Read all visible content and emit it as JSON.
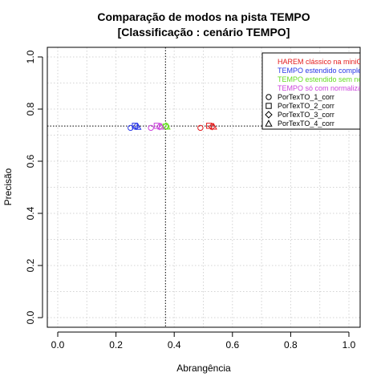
{
  "chart_data": {
    "type": "scatter",
    "title_line1": "Comparação de modos na pista TEMPO",
    "title_line2": "[Classificação : cenário TEMPO]",
    "xlabel": "Abrangência",
    "ylabel": "Precisão",
    "xlim": [
      0,
      1
    ],
    "ylim": [
      0,
      1
    ],
    "x_ticks": [
      "0.0",
      "0.2",
      "0.4",
      "0.6",
      "0.8",
      "1.0"
    ],
    "y_ticks": [
      "0.0",
      "0.2",
      "0.4",
      "0.6",
      "0.8",
      "1.0"
    ],
    "grid": true,
    "legend_position": "top-right",
    "reference_lines": {
      "vertical_x": 0.37,
      "horizontal_y": 0.735
    },
    "series": [
      {
        "name": "HAREM clássico na miniC",
        "color": "#e41a1c",
        "points": [
          {
            "x": 0.49,
            "y": 0.728,
            "shape": "circle"
          },
          {
            "x": 0.52,
            "y": 0.736,
            "shape": "square"
          },
          {
            "x": 0.53,
            "y": 0.733,
            "shape": "diamond"
          },
          {
            "x": 0.535,
            "y": 0.733,
            "shape": "triangle"
          }
        ]
      },
      {
        "name": "TEMPO estendido comple",
        "color": "#2a38e8",
        "points": [
          {
            "x": 0.25,
            "y": 0.728,
            "shape": "circle"
          },
          {
            "x": 0.265,
            "y": 0.736,
            "shape": "square"
          },
          {
            "x": 0.27,
            "y": 0.734,
            "shape": "diamond"
          },
          {
            "x": 0.275,
            "y": 0.732,
            "shape": "triangle"
          }
        ]
      },
      {
        "name": "TEMPO estendido sem no",
        "color": "#66dd22",
        "points": [
          {
            "x": 0.37,
            "y": 0.733,
            "shape": "square"
          },
          {
            "x": 0.372,
            "y": 0.735,
            "shape": "diamond"
          },
          {
            "x": 0.375,
            "y": 0.733,
            "shape": "triangle"
          }
        ]
      },
      {
        "name": "TEMPO só com normaliza",
        "color": "#cc44dd",
        "points": [
          {
            "x": 0.32,
            "y": 0.728,
            "shape": "circle"
          },
          {
            "x": 0.34,
            "y": 0.736,
            "shape": "square"
          },
          {
            "x": 0.35,
            "y": 0.733,
            "shape": "diamond"
          },
          {
            "x": 0.355,
            "y": 0.733,
            "shape": "triangle"
          }
        ]
      }
    ],
    "shape_legend": [
      {
        "label": "PorTexTO_1_corr",
        "shape": "circle"
      },
      {
        "label": "PorTexTO_2_corr",
        "shape": "square"
      },
      {
        "label": "PorTexTO_3_corr",
        "shape": "diamond"
      },
      {
        "label": "PorTexTO_4_corr",
        "shape": "triangle"
      }
    ],
    "colors": {
      "axis": "#000000",
      "grid": "#d3d3d3",
      "reference_line": "#000000",
      "legend_text": "#000000"
    }
  }
}
